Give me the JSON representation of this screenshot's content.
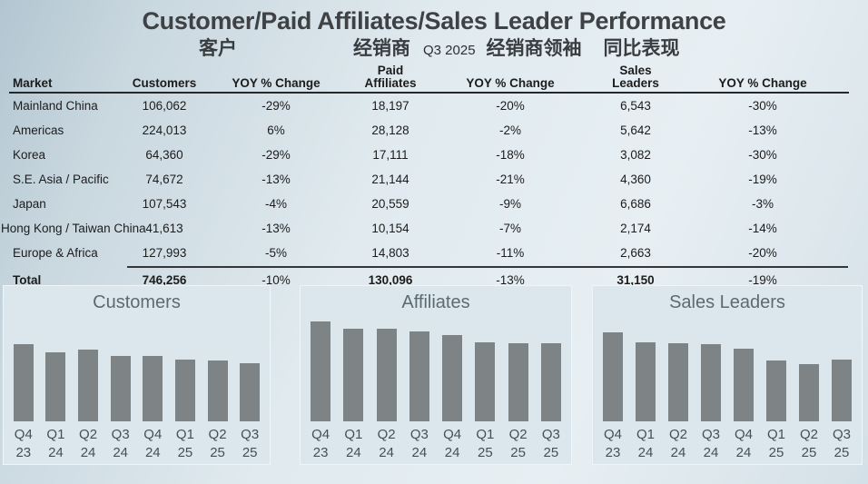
{
  "header": {
    "title": "Customer/Paid Affiliates/Sales Leader Performance",
    "subtitle_cn": {
      "customers": "客户",
      "affiliates": "经销商",
      "leaders": "经销商领袖",
      "yoy": "同比表现"
    },
    "quarter": "Q3 2025"
  },
  "table": {
    "headers": [
      "Market",
      "Customers",
      "YOY % Change",
      "Paid\nAffiliates",
      "YOY % Change",
      "Sales\nLeaders",
      "YOY % Change"
    ],
    "rows": [
      [
        "Mainland China",
        "106,062",
        "-29%",
        "18,197",
        "-20%",
        "6,543",
        "-30%"
      ],
      [
        "Americas",
        "224,013",
        "6%",
        "28,128",
        "-2%",
        "5,642",
        "-13%"
      ],
      [
        "Korea",
        "64,360",
        "-29%",
        "17,111",
        "-18%",
        "3,082",
        "-30%"
      ],
      [
        "S.E. Asia / Pacific",
        "74,672",
        "-13%",
        "21,144",
        "-21%",
        "4,360",
        "-19%"
      ],
      [
        "Japan",
        "107,543",
        "-4%",
        "20,559",
        "-9%",
        "6,686",
        "-3%"
      ],
      [
        "Hong Kong / Taiwan China",
        "41,613",
        "-13%",
        "10,154",
        "-7%",
        "2,174",
        "-14%"
      ],
      [
        "Europe & Africa",
        "127,993",
        "-5%",
        "14,803",
        "-11%",
        "2,663",
        "-20%"
      ]
    ],
    "total": [
      "Total",
      "746,256",
      "-10%",
      "130,096",
      "-13%",
      "31,150",
      "-19%"
    ]
  },
  "chart_data": [
    {
      "type": "bar",
      "title": "Customers",
      "categories": [
        "Q4 23",
        "Q1 24",
        "Q2 24",
        "Q3 24",
        "Q4 24",
        "Q1 25",
        "Q2 25",
        "Q3 25"
      ],
      "values_relative_pct": [
        77,
        69,
        72,
        65,
        65,
        62,
        61,
        58
      ],
      "value_units": "bar height as % of plot area; no value axis shown",
      "latest_actual_from_table": "746,256",
      "bar_color": "#7e8386",
      "grid": false,
      "legend": false
    },
    {
      "type": "bar",
      "title": "Affiliates",
      "categories": [
        "Q4 23",
        "Q1 24",
        "Q2 24",
        "Q3 24",
        "Q4 24",
        "Q1 25",
        "Q2 25",
        "Q3 25"
      ],
      "values_relative_pct": [
        100,
        93,
        93,
        90,
        86,
        79,
        78,
        78
      ],
      "value_units": "bar height as % of plot area; no value axis shown",
      "latest_actual_from_table": "130,096",
      "bar_color": "#7e8386",
      "grid": false,
      "legend": false
    },
    {
      "type": "bar",
      "title": "Sales Leaders",
      "categories": [
        "Q4 23",
        "Q1 24",
        "Q2 24",
        "Q3 24",
        "Q4 24",
        "Q1 25",
        "Q2 25",
        "Q3 25"
      ],
      "values_relative_pct": [
        89,
        79,
        78,
        77,
        73,
        61,
        57,
        62
      ],
      "value_units": "bar height as % of plot area; no value axis shown",
      "latest_actual_from_table": "31,150",
      "bar_color": "#7e8386",
      "grid": false,
      "legend": false
    }
  ],
  "colors": {
    "background_top_left": "#b2c6d1",
    "background_center": "#e3edf1",
    "panel_background": "#dbe7ed",
    "bar_gray": "#7e8386",
    "text_dark": "#1c1c1c",
    "chart_title_gray": "#5c6a73"
  }
}
